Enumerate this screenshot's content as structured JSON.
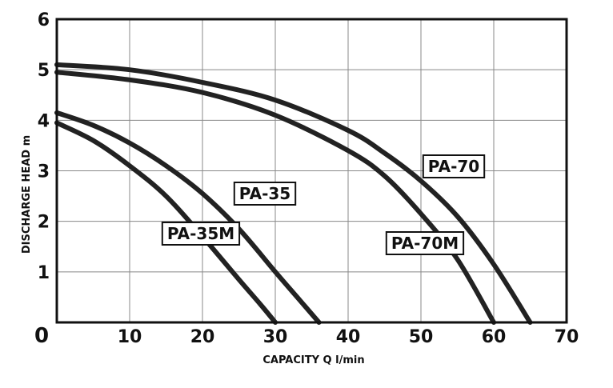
{
  "chart_data": {
    "type": "line",
    "xlabel": "CAPACITY Q l/min",
    "ylabel": "DISCHARGE HEAD m",
    "xlim": [
      0,
      70
    ],
    "ylim": [
      0,
      6
    ],
    "x_ticks": [
      "0",
      "10",
      "20",
      "30",
      "40",
      "50",
      "60",
      "70"
    ],
    "y_ticks": [
      "1",
      "2",
      "3",
      "4",
      "5",
      "6"
    ],
    "grid": true,
    "series": [
      {
        "name": "PA-35M",
        "x": [
          0,
          5,
          10,
          15,
          20,
          25,
          28,
          30
        ],
        "y": [
          3.95,
          3.6,
          3.1,
          2.5,
          1.7,
          0.85,
          0.35,
          0
        ]
      },
      {
        "name": "PA-35",
        "x": [
          0,
          5,
          10,
          15,
          20,
          25,
          30,
          33,
          36
        ],
        "y": [
          4.15,
          3.9,
          3.55,
          3.1,
          2.55,
          1.85,
          1.0,
          0.5,
          0
        ]
      },
      {
        "name": "PA-70M",
        "x": [
          0,
          10,
          20,
          30,
          40,
          45,
          50,
          55,
          60
        ],
        "y": [
          4.95,
          4.8,
          4.55,
          4.1,
          3.4,
          2.9,
          2.15,
          1.25,
          0
        ]
      },
      {
        "name": "PA-70",
        "x": [
          0,
          10,
          20,
          30,
          40,
          45,
          50,
          55,
          60,
          65
        ],
        "y": [
          5.1,
          5.0,
          4.75,
          4.4,
          3.8,
          3.35,
          2.8,
          2.1,
          1.15,
          0
        ]
      }
    ]
  }
}
